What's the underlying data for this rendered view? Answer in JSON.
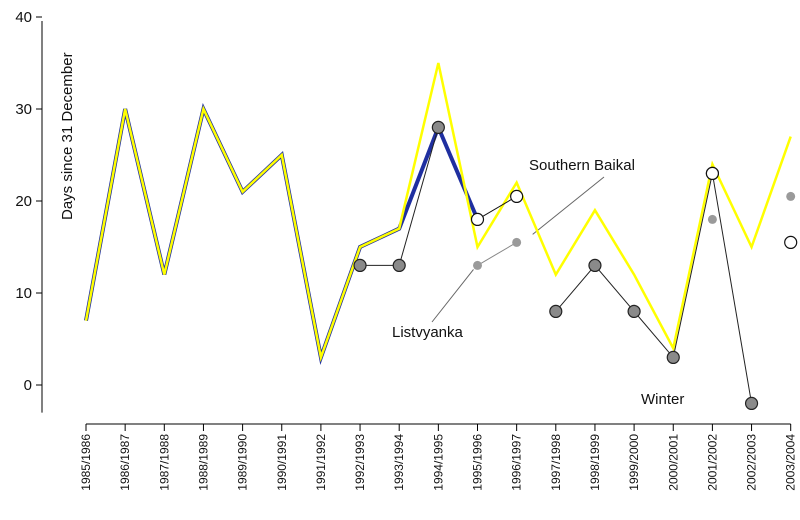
{
  "chart_data": {
    "type": "line",
    "title": "",
    "xlabel": "",
    "ylabel": "Days since 31 December",
    "ylim": [
      -3,
      40
    ],
    "yticks": [
      0,
      10,
      20,
      30,
      40
    ],
    "grid": false,
    "categories": [
      "1985/1986",
      "1986/1987",
      "1987/1988",
      "1988/1989",
      "1989/1990",
      "1990/1991",
      "1991/1992",
      "1992/1993",
      "1993/1994",
      "1994/1995",
      "1995/1996",
      "1996/1997",
      "1997/1998",
      "1998/1999",
      "1999/2000",
      "2000/2001",
      "2001/2002",
      "2002/2003",
      "2003/2004"
    ],
    "series": [
      {
        "color": "#ffff00",
        "values": [
          7,
          30,
          12,
          30,
          21,
          25,
          3,
          15,
          17,
          35,
          15,
          22,
          12,
          19,
          12,
          4,
          24,
          15,
          27
        ]
      },
      {
        "color": "#1f2fa0",
        "values": [
          7,
          30,
          12,
          30,
          21,
          25,
          3,
          15,
          17,
          28,
          18,
          null,
          null,
          null,
          null,
          null,
          null,
          null,
          null
        ]
      },
      {
        "name": "Southern Baikal",
        "color": "#000000",
        "marker": "open-circle",
        "values": [
          null,
          null,
          null,
          null,
          null,
          null,
          null,
          null,
          null,
          null,
          18,
          20.5,
          null,
          null,
          null,
          null,
          23,
          null,
          15.5
        ]
      },
      {
        "name": "Listvyanka",
        "color": "#999999",
        "marker": "small-grey-dot",
        "values": [
          null,
          null,
          null,
          null,
          null,
          null,
          null,
          null,
          null,
          null,
          13,
          15.5,
          null,
          null,
          null,
          null,
          18,
          null,
          20.5
        ]
      },
      {
        "name": "Winter",
        "color": "#555555",
        "marker": "filled-grey-circle",
        "values": [
          null,
          null,
          null,
          null,
          null,
          null,
          null,
          13,
          13,
          28,
          null,
          null,
          8,
          13,
          8,
          3,
          23,
          -2,
          null
        ]
      }
    ],
    "annotations": [
      {
        "text": "Southern Baikal"
      },
      {
        "text": "Listvyanka"
      },
      {
        "text": "Winter"
      }
    ]
  }
}
